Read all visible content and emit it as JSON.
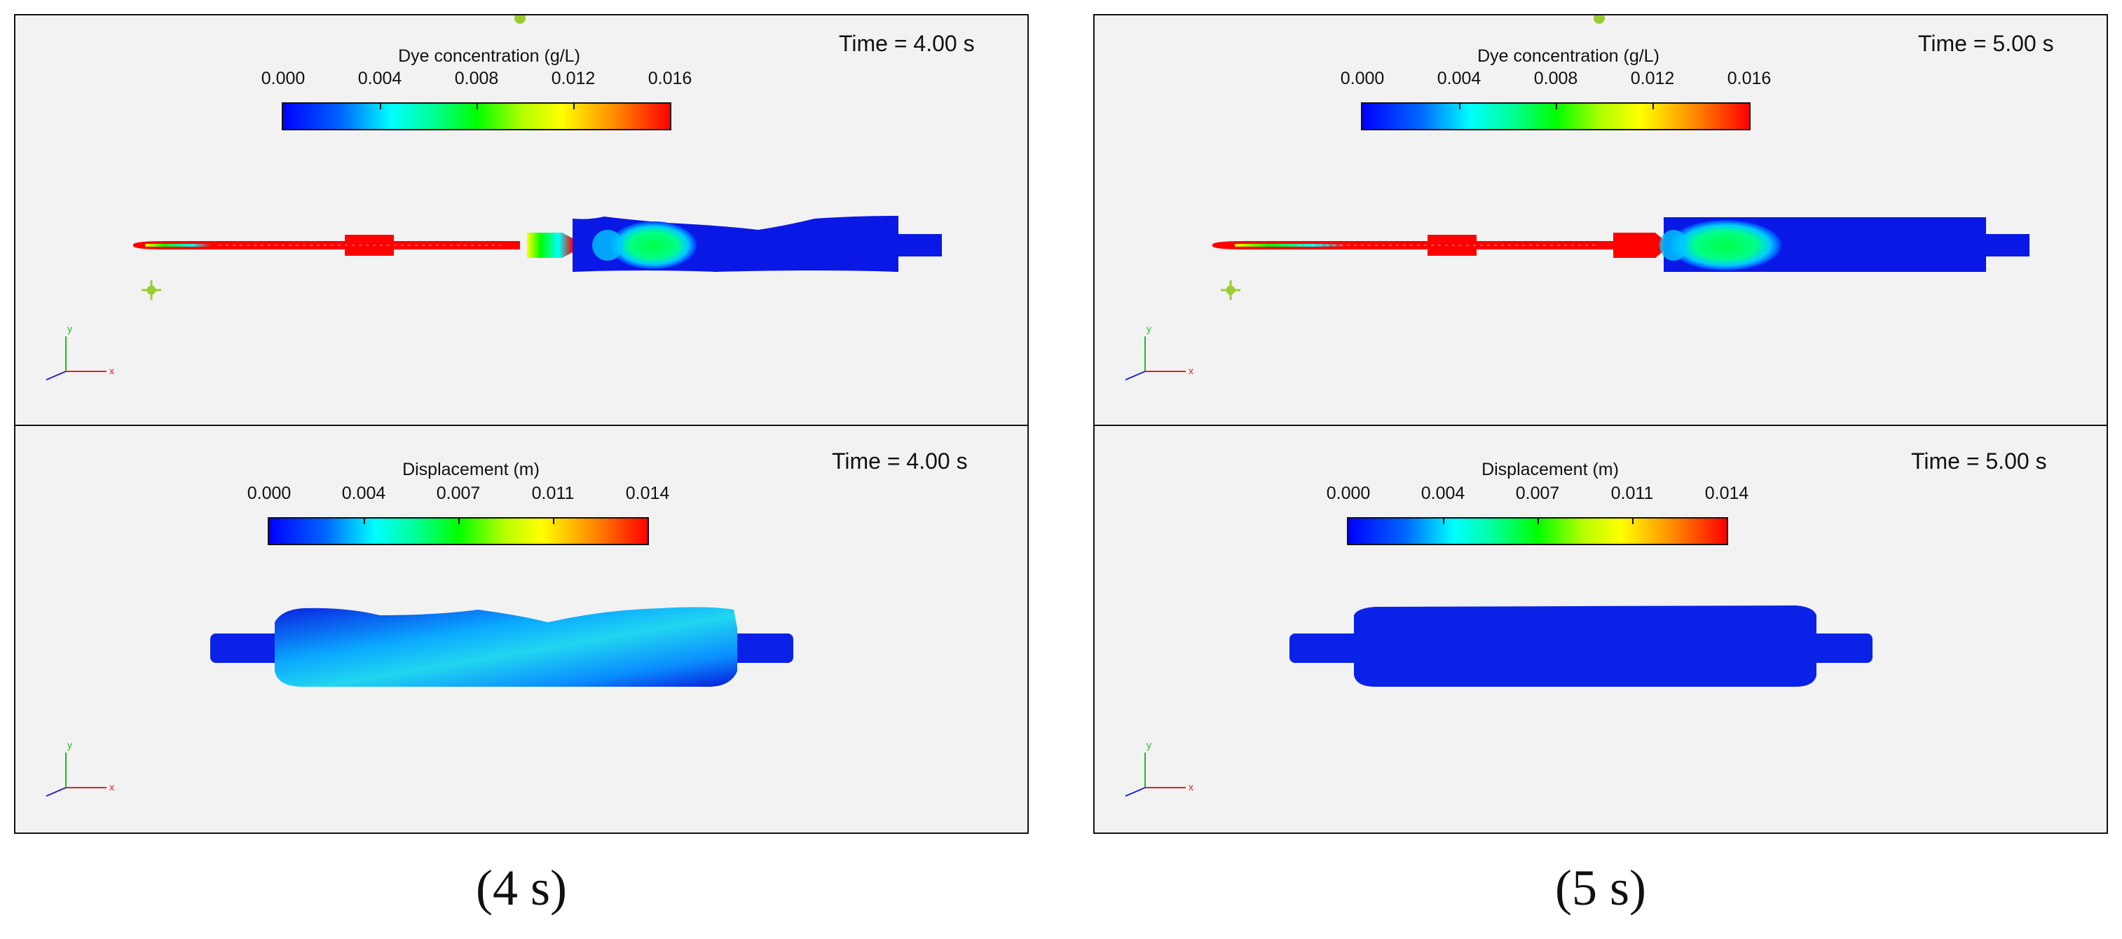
{
  "panels": [
    {
      "time": "Time = 4.00 s",
      "title": "Dye concentration (g/L)",
      "ticks": [
        "0.000",
        "0.004",
        "0.008",
        "0.012",
        "0.016"
      ]
    },
    {
      "time": "Time = 5.00 s",
      "title": "Dye concentration (g/L)",
      "ticks": [
        "0.000",
        "0.004",
        "0.008",
        "0.012",
        "0.016"
      ]
    },
    {
      "time": "Time = 4.00 s",
      "title": "Displacement (m)",
      "ticks": [
        "0.000",
        "0.004",
        "0.007",
        "0.011",
        "0.014"
      ]
    },
    {
      "time": "Time = 5.00 s",
      "title": "Displacement (m)",
      "ticks": [
        "0.000",
        "0.004",
        "0.007",
        "0.011",
        "0.014"
      ]
    }
  ],
  "axes": {
    "x": "x",
    "y": "y"
  },
  "captions": [
    "(4 s)",
    "(5 s)"
  ],
  "colors": {
    "background": "#f2f2f2",
    "dye_high": "#ff0000",
    "low": "#0000ff",
    "mid": "#00ff00"
  }
}
